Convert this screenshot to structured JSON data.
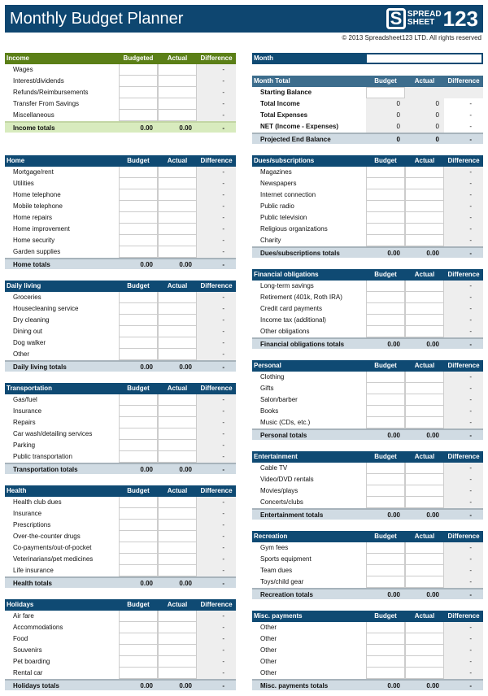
{
  "header": {
    "title": "Monthly Budget Planner",
    "logo_text": "SPREADSHEET123",
    "copyright": "© 2013 Spreadsheet123 LTD. All rights reserved"
  },
  "month": {
    "label": "Month",
    "value": ""
  },
  "month_total": {
    "title": "Month Total",
    "cols": [
      "Budget",
      "Actual",
      "Difference"
    ],
    "rows": [
      {
        "label": "Starting Balance",
        "b": "",
        "a": "",
        "d": ""
      },
      {
        "label": "Total Income",
        "b": "0",
        "a": "0",
        "d": "-"
      },
      {
        "label": "Total Expenses",
        "b": "0",
        "a": "0",
        "d": "-"
      },
      {
        "label": "NET (Income - Expenses)",
        "b": "0",
        "a": "0",
        "d": "-"
      }
    ],
    "total": {
      "label": "Projected End Balance",
      "b": "0",
      "a": "0",
      "d": "-"
    }
  },
  "left": [
    {
      "title": "Income",
      "theme": "green",
      "cols": [
        "Budgeted",
        "Actual",
        "Difference"
      ],
      "items": [
        "Wages",
        "Interest/dividends",
        "Refunds/Reimbursements",
        "Transfer From Savings",
        "Miscellaneous"
      ],
      "total": {
        "label": "Income totals",
        "b": "0.00",
        "a": "0.00",
        "d": "-"
      }
    },
    {
      "title": "Home",
      "cols": [
        "Budget",
        "Actual",
        "Difference"
      ],
      "items": [
        "Mortgage/rent",
        "Utilities",
        "Home telephone",
        "Mobile telephone",
        "Home repairs",
        "Home improvement",
        "Home security",
        "Garden supplies"
      ],
      "total": {
        "label": "Home totals",
        "b": "0.00",
        "a": "0.00",
        "d": "-"
      }
    },
    {
      "title": "Daily living",
      "cols": [
        "Budget",
        "Actual",
        "Difference"
      ],
      "items": [
        "Groceries",
        "Housecleaning service",
        "Dry cleaning",
        "Dining out",
        "Dog walker",
        "Other"
      ],
      "total": {
        "label": "Daily living totals",
        "b": "0.00",
        "a": "0.00",
        "d": "-"
      }
    },
    {
      "title": "Transportation",
      "cols": [
        "Budget",
        "Actual",
        "Difference"
      ],
      "items": [
        "Gas/fuel",
        "Insurance",
        "Repairs",
        "Car wash/detailing services",
        "Parking",
        "Public transportation"
      ],
      "total": {
        "label": "Transportation totals",
        "b": "0.00",
        "a": "0.00",
        "d": "-"
      }
    },
    {
      "title": "Health",
      "cols": [
        "Budget",
        "Actual",
        "Difference"
      ],
      "items": [
        "Health club dues",
        "Insurance",
        "Prescriptions",
        "Over-the-counter drugs",
        "Co-payments/out-of-pocket",
        "Veterinarians/pet medicines",
        "Life insurance"
      ],
      "total": {
        "label": "Health totals",
        "b": "0.00",
        "a": "0.00",
        "d": "-"
      }
    },
    {
      "title": "Holidays",
      "cols": [
        "Budget",
        "Actual",
        "Difference"
      ],
      "items": [
        "Air fare",
        "Accommodations",
        "Food",
        "Souvenirs",
        "Pet boarding",
        "Rental car"
      ],
      "total": {
        "label": "Holidays totals",
        "b": "0.00",
        "a": "0.00",
        "d": "-"
      }
    }
  ],
  "right": [
    {
      "title": "Dues/subscriptions",
      "cols": [
        "Budget",
        "Actual",
        "Difference"
      ],
      "items": [
        "Magazines",
        "Newspapers",
        "Internet connection",
        "Public radio",
        "Public television",
        "Religious organizations",
        "Charity"
      ],
      "total": {
        "label": "Dues/subscriptions totals",
        "b": "0.00",
        "a": "0.00",
        "d": "-"
      }
    },
    {
      "title": "Financial obligations",
      "cols": [
        "Budget",
        "Actual",
        "Difference"
      ],
      "items": [
        "Long-term savings",
        "Retirement (401k, Roth IRA)",
        "Credit card payments",
        "Income tax (additional)",
        "Other obligations"
      ],
      "total": {
        "label": "Financial obligations totals",
        "b": "0.00",
        "a": "0.00",
        "d": "-"
      }
    },
    {
      "title": "Personal",
      "cols": [
        "Budget",
        "Actual",
        "Difference"
      ],
      "items": [
        "Clothing",
        "Gifts",
        "Salon/barber",
        "Books",
        "Music (CDs, etc.)"
      ],
      "total": {
        "label": "Personal totals",
        "b": "0.00",
        "a": "0.00",
        "d": "-"
      }
    },
    {
      "title": "Entertainment",
      "cols": [
        "Budget",
        "Actual",
        "Difference"
      ],
      "items": [
        "Cable TV",
        "Video/DVD rentals",
        "Movies/plays",
        "Concerts/clubs"
      ],
      "total": {
        "label": "Entertainment totals",
        "b": "0.00",
        "a": "0.00",
        "d": "-"
      }
    },
    {
      "title": "Recreation",
      "cols": [
        "Budget",
        "Actual",
        "Difference"
      ],
      "items": [
        "Gym fees",
        "Sports equipment",
        "Team dues",
        "Toys/child gear"
      ],
      "total": {
        "label": "Recreation totals",
        "b": "0.00",
        "a": "0.00",
        "d": "-"
      }
    },
    {
      "title": "Misc. payments",
      "cols": [
        "Budget",
        "Actual",
        "Difference"
      ],
      "items": [
        "Other",
        "Other",
        "Other",
        "Other",
        "Other"
      ],
      "total": {
        "label": "Misc. payments totals",
        "b": "0.00",
        "a": "0.00",
        "d": "-"
      }
    }
  ],
  "item_diff": "-",
  "colors": {
    "banner": "#0e4670",
    "header": "#0f4a73",
    "income_header": "#5b7f17",
    "income_total": "#d8ebbe",
    "total": "#d0dbe3",
    "diff_cell": "#eeeeee"
  }
}
